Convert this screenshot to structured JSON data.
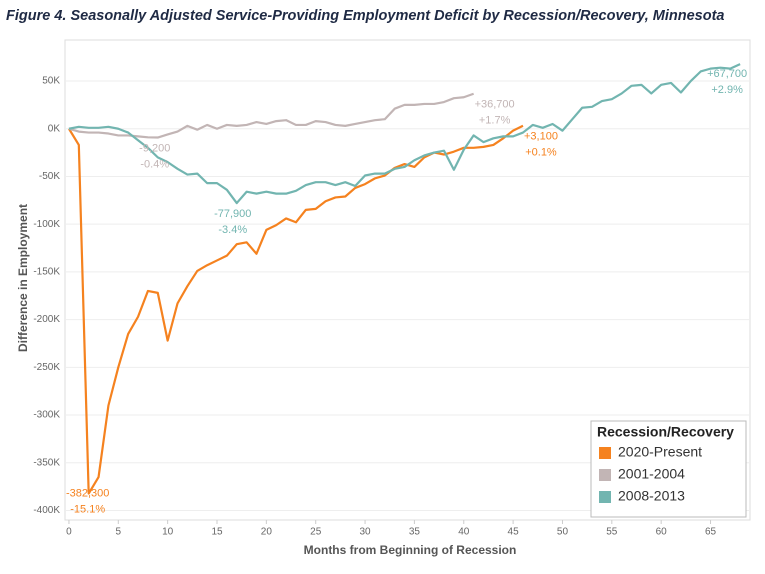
{
  "chart_data": {
    "type": "line",
    "title": "Figure 4. Seasonally Adjusted Service-Providing Employment Deficit by Recession/Recovery, Minnesota",
    "x_label": "Months from Beginning of Recession",
    "y_label": "Difference in Employment",
    "legend_title": "Recession/Recovery",
    "legend_position": "lower right",
    "grid": true,
    "x": [
      0,
      1,
      2,
      3,
      4,
      5,
      6,
      7,
      8,
      9,
      10,
      11,
      12,
      13,
      14,
      15,
      16,
      17,
      18,
      19,
      20,
      21,
      22,
      23,
      24,
      25,
      26,
      27,
      28,
      29,
      30,
      31,
      32,
      33,
      34,
      35,
      36,
      37,
      38,
      39,
      40,
      41,
      42,
      43,
      44,
      45,
      46,
      47,
      48,
      49,
      50,
      51,
      52,
      53,
      54,
      55,
      56,
      57,
      58,
      59,
      60,
      61,
      62,
      63,
      64,
      65,
      66,
      67,
      68
    ],
    "xlim": [
      -0.4,
      69
    ],
    "xticks": [
      0,
      5,
      10,
      15,
      20,
      25,
      30,
      35,
      40,
      45,
      50,
      55,
      60,
      65
    ],
    "ylim": [
      -410000,
      93000
    ],
    "yticks": [
      {
        "value": 50000,
        "label": "50K"
      },
      {
        "value": 0,
        "label": "0K"
      },
      {
        "value": -50000,
        "label": "-50K"
      },
      {
        "value": -100000,
        "label": "-100K"
      },
      {
        "value": -150000,
        "label": "-150K"
      },
      {
        "value": -200000,
        "label": "-200K"
      },
      {
        "value": -250000,
        "label": "-250K"
      },
      {
        "value": -300000,
        "label": "-300K"
      },
      {
        "value": -350000,
        "label": "-350K"
      },
      {
        "value": -400000,
        "label": "-400K"
      }
    ],
    "series": [
      {
        "name": "2020-Present",
        "color": "#f5821f",
        "values": [
          0,
          -17000,
          -382300,
          -365000,
          -290000,
          -250000,
          -215000,
          -197000,
          -170000,
          -172000,
          -222000,
          -183000,
          -165000,
          -149000,
          -143000,
          -138000,
          -133000,
          -121000,
          -119000,
          -131000,
          -106000,
          -101000,
          -94000,
          -98000,
          -85000,
          -84000,
          -76000,
          -72000,
          -71000,
          -62000,
          -58000,
          -52000,
          -49000,
          -41000,
          -37000,
          -40000,
          -30000,
          -25000,
          -27000,
          -24000,
          -20000,
          -20000,
          -19000,
          -17000,
          -10000,
          -2000,
          3100,
          null,
          null,
          null,
          null,
          null,
          null,
          null,
          null,
          null,
          null,
          null,
          null,
          null,
          null,
          null,
          null,
          null,
          null,
          null,
          null,
          null,
          null
        ],
        "annotations": [
          {
            "x": 2,
            "labels": [
              "-382,300",
              "-15.1%"
            ]
          },
          {
            "x": 46,
            "labels": [
              "+3,100",
              "+0.1%"
            ]
          }
        ]
      },
      {
        "name": "2001-2004",
        "color": "#c2b5b5",
        "values": [
          0,
          -3000,
          -4000,
          -4000,
          -5000,
          -7000,
          -7000,
          -8000,
          -9000,
          -9200,
          -6000,
          -3000,
          3000,
          -1000,
          4000,
          0,
          4000,
          3000,
          4000,
          7000,
          5000,
          8000,
          9000,
          4000,
          4000,
          8000,
          7000,
          4000,
          3000,
          5000,
          7000,
          9000,
          10000,
          21000,
          25000,
          25000,
          26000,
          26000,
          28000,
          32000,
          33000,
          36700,
          null,
          null,
          null,
          null,
          null,
          null,
          null,
          null,
          null,
          null,
          null,
          null,
          null,
          null,
          null,
          null,
          null,
          null,
          null,
          null,
          null,
          null,
          null,
          null,
          null,
          null,
          null
        ],
        "annotations": [
          {
            "x": 9,
            "labels": [
              "-9,200",
              "-0.4%"
            ]
          },
          {
            "x": 41,
            "labels": [
              "+36,700",
              "+1.7%"
            ]
          }
        ]
      },
      {
        "name": "2008-2013",
        "color": "#72b5b0",
        "values": [
          0,
          2000,
          1000,
          1000,
          2000,
          0,
          -4000,
          -12000,
          -20000,
          -30000,
          -35000,
          -42000,
          -48000,
          -47000,
          -57000,
          -57000,
          -64000,
          -77900,
          -66000,
          -68000,
          -66000,
          -68000,
          -68000,
          -65000,
          -59000,
          -56000,
          -56000,
          -59000,
          -56000,
          -60000,
          -49000,
          -47000,
          -47000,
          -42000,
          -40000,
          -33000,
          -28000,
          -25000,
          -23000,
          -43000,
          -22000,
          -7000,
          -14000,
          -10000,
          -8000,
          -8000,
          -4000,
          4000,
          1000,
          5000,
          -2000,
          10000,
          22000,
          23000,
          29000,
          31000,
          37000,
          45000,
          46000,
          37000,
          46000,
          48000,
          38000,
          50000,
          60000,
          63000,
          64000,
          63000,
          67700
        ],
        "annotations": [
          {
            "x": 17,
            "labels": [
              "-77,900",
              "-3.4%"
            ]
          },
          {
            "x": 68,
            "labels": [
              "+67,700",
              "+2.9%"
            ]
          }
        ]
      }
    ]
  }
}
